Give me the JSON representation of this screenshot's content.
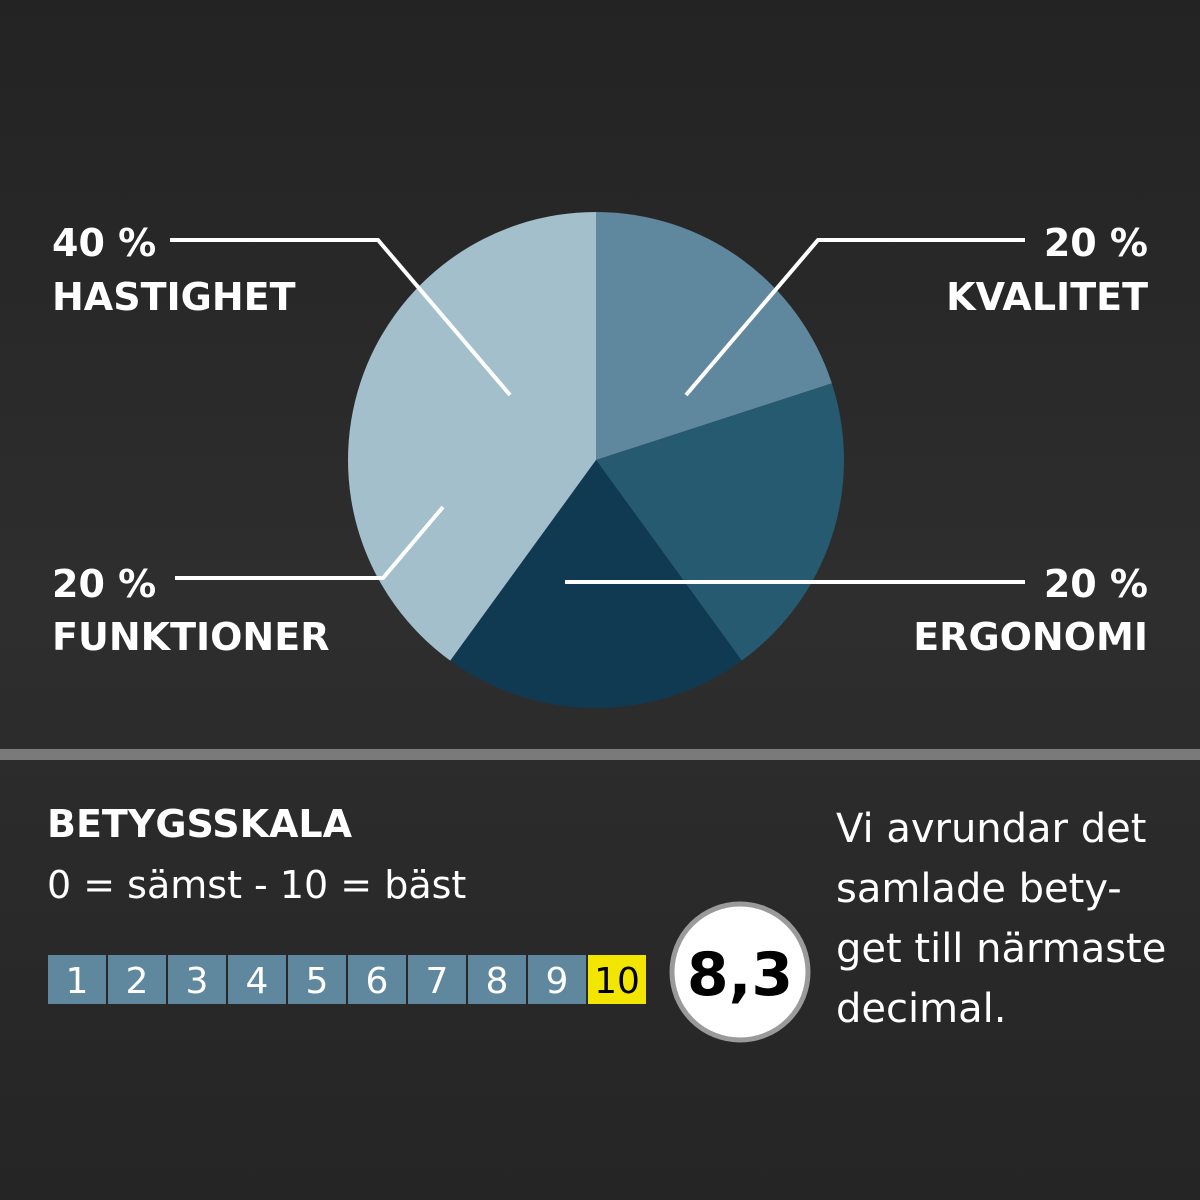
{
  "chart_data": {
    "type": "pie",
    "categories": [
      "KVALITET",
      "ERGONOMI",
      "FUNKTIONER",
      "HASTIGHET"
    ],
    "values": [
      20,
      20,
      20,
      40
    ],
    "value_labels": [
      "20 %",
      "20 %",
      "20 %",
      "40 %"
    ],
    "colors": [
      "#5f889e",
      "#265a70",
      "#0f3a52",
      "#a3bfcc"
    ]
  },
  "scale": {
    "title": "BETYGSSKALA",
    "subtitle": "0 = sämst - 10 = bäst",
    "steps": [
      1,
      2,
      3,
      4,
      5,
      6,
      7,
      8,
      9,
      10
    ],
    "score": "8,3"
  },
  "note": {
    "lines": [
      "Vi  avrundar det",
      "samlade bety-",
      "get till närmaste",
      "decimal."
    ]
  }
}
